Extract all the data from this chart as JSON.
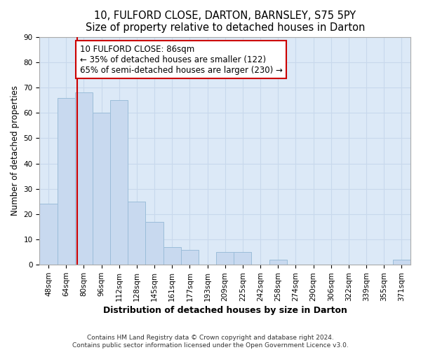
{
  "title1": "10, FULFORD CLOSE, DARTON, BARNSLEY, S75 5PY",
  "title2": "Size of property relative to detached houses in Darton",
  "xlabel": "Distribution of detached houses by size in Darton",
  "ylabel": "Number of detached properties",
  "categories": [
    "48sqm",
    "64sqm",
    "80sqm",
    "96sqm",
    "112sqm",
    "128sqm",
    "145sqm",
    "161sqm",
    "177sqm",
    "193sqm",
    "209sqm",
    "225sqm",
    "242sqm",
    "258sqm",
    "274sqm",
    "290sqm",
    "306sqm",
    "322sqm",
    "339sqm",
    "355sqm",
    "371sqm"
  ],
  "values": [
    24,
    66,
    68,
    60,
    65,
    25,
    17,
    7,
    6,
    0,
    5,
    5,
    0,
    2,
    0,
    0,
    0,
    0,
    0,
    0,
    2
  ],
  "bar_color": "#c8d9ef",
  "bar_edge_color": "#9bbdd9",
  "highlight_color": "#cc0000",
  "annotation_text": "10 FULFORD CLOSE: 86sqm\n← 35% of detached houses are smaller (122)\n65% of semi-detached houses are larger (230) →",
  "annotation_box_color": "#ffffff",
  "annotation_box_edge": "#cc0000",
  "ylim": [
    0,
    90
  ],
  "yticks": [
    0,
    10,
    20,
    30,
    40,
    50,
    60,
    70,
    80,
    90
  ],
  "grid_color": "#c8d8ec",
  "plot_bg_color": "#dce9f7",
  "fig_bg_color": "#ffffff",
  "footer1": "Contains HM Land Registry data © Crown copyright and database right 2024.",
  "footer2": "Contains public sector information licensed under the Open Government Licence v3.0.",
  "title1_fontsize": 10.5,
  "title2_fontsize": 9.5,
  "xlabel_fontsize": 9,
  "ylabel_fontsize": 8.5,
  "tick_fontsize": 7.5,
  "annotation_fontsize": 8.5,
  "footer_fontsize": 6.5,
  "red_line_index": 1.62
}
